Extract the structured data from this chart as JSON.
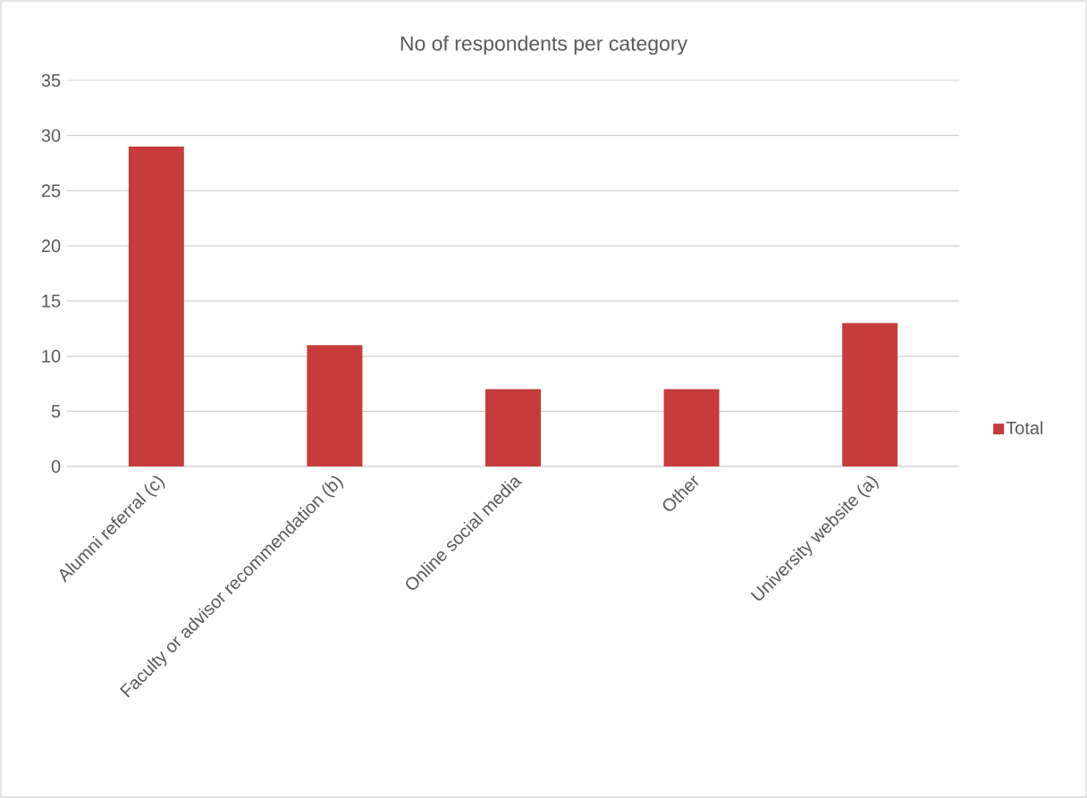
{
  "chart_data": {
    "type": "bar",
    "title": "No of respondents per category",
    "categories": [
      "Alumni referral (c)",
      "Faculty or advisor recommendation (b)",
      "Online social media",
      "Other",
      "University website (a)"
    ],
    "series": [
      {
        "name": "Total",
        "color": "#c83b3b",
        "values": [
          29,
          11,
          7,
          7,
          13
        ]
      }
    ],
    "ylim": [
      0,
      35
    ],
    "yticks": [
      0,
      5,
      10,
      15,
      20,
      25,
      30,
      35
    ],
    "grid": "y",
    "legend": "right"
  }
}
